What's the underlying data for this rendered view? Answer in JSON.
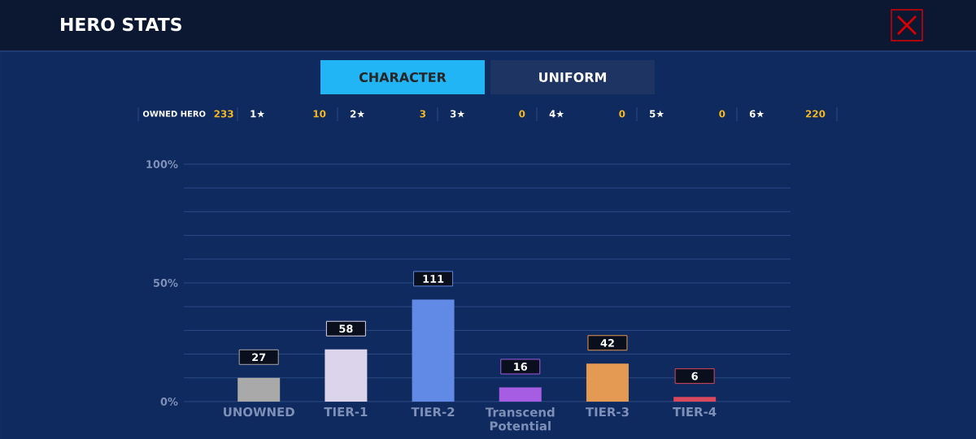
{
  "chart_data": {
    "type": "bar",
    "title": "HERO STATS",
    "categories": [
      "UNOWNED",
      "TIER-1",
      "TIER-2",
      "Transcend Potential",
      "TIER-3",
      "TIER-4"
    ],
    "values": [
      10,
      22,
      43,
      6,
      16,
      2
    ],
    "colors": [
      "#a9a9a9",
      "#dcd4ea",
      "#6189e6",
      "#a65de3",
      "#e49a52",
      "#d9495e"
    ],
    "ylim": [
      0,
      100
    ],
    "yticks": [
      {
        "value": 0,
        "label": "0%"
      },
      {
        "value": 10,
        "label": null
      },
      {
        "value": 20,
        "label": null
      },
      {
        "value": 30,
        "label": null
      },
      {
        "value": 40,
        "label": null
      },
      {
        "value": 50,
        "label": "50%"
      },
      {
        "value": 60,
        "label": null
      },
      {
        "value": 70,
        "label": null
      },
      {
        "value": 80,
        "label": null
      },
      {
        "value": 90,
        "label": null
      },
      {
        "value": 100,
        "label": "100%"
      }
    ],
    "grid": "y",
    "annotations": [
      "CHARACTER",
      "UNIFORM",
      "OWNED HERO",
      "233",
      "1★",
      "10",
      "2★",
      "3",
      "3★",
      "0",
      "4★",
      "0",
      "5★",
      "0",
      "6★",
      "220",
      {
        "text": "27",
        "x": "UNOWNED",
        "y": 10
      },
      {
        "text": "58",
        "x": "TIER-1",
        "y": 22
      },
      {
        "text": "111",
        "x": "TIER-2",
        "y": 43
      },
      {
        "text": "16",
        "x": "Transcend Potential",
        "y": 6
      },
      {
        "text": "42",
        "x": "TIER-3",
        "y": 16
      },
      {
        "text": "6",
        "x": "TIER-4",
        "y": 2
      }
    ]
  }
}
